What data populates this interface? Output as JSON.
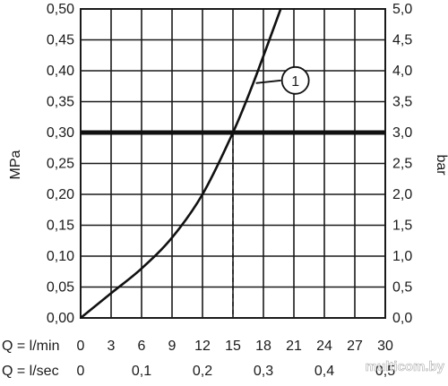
{
  "chart_data": {
    "type": "line",
    "title": "",
    "x": [
      0,
      3,
      6,
      9,
      12,
      15,
      17,
      19.7
    ],
    "series": [
      {
        "name": "",
        "y": [
          0.0,
          0.04,
          0.08,
          0.13,
          0.2,
          0.3,
          0.38,
          0.5
        ]
      }
    ],
    "xlim": [
      0,
      30
    ],
    "ylim": [
      0,
      0.5
    ],
    "x_ticks_lmin": [
      "0",
      "3",
      "6",
      "9",
      "12",
      "15",
      "18",
      "21",
      "24",
      "27",
      "30"
    ],
    "x_ticks_lsec": [
      {
        "label": "0",
        "value": 0
      },
      {
        "label": "0,1",
        "value": 6
      },
      {
        "label": "0,2",
        "value": 12
      },
      {
        "label": "0,3",
        "value": 18
      },
      {
        "label": "0,4",
        "value": 24
      },
      {
        "label": "0,5",
        "value": 30
      }
    ],
    "y_ticks_left": [
      "0,00",
      "0,05",
      "0,10",
      "0,15",
      "0,20",
      "0,25",
      "0,30",
      "0,35",
      "0,40",
      "0,45",
      "0,50"
    ],
    "y_ticks_right": [
      "0,0",
      "0,5",
      "1,0",
      "1,5",
      "2,0",
      "2,5",
      "3,0",
      "3,5",
      "4,0",
      "4,5",
      "5,0"
    ],
    "ylabel_left": "MPa",
    "ylabel_right": "bar",
    "xlabel_lmin": "Q = l/min",
    "xlabel_lsec": "Q = l/sec",
    "reference_line": {
      "y": 0.3,
      "x_drop": 15
    },
    "callout": {
      "label": "1",
      "x": 17,
      "y": 0.38
    },
    "grid": true
  },
  "watermark": "multicom.by"
}
